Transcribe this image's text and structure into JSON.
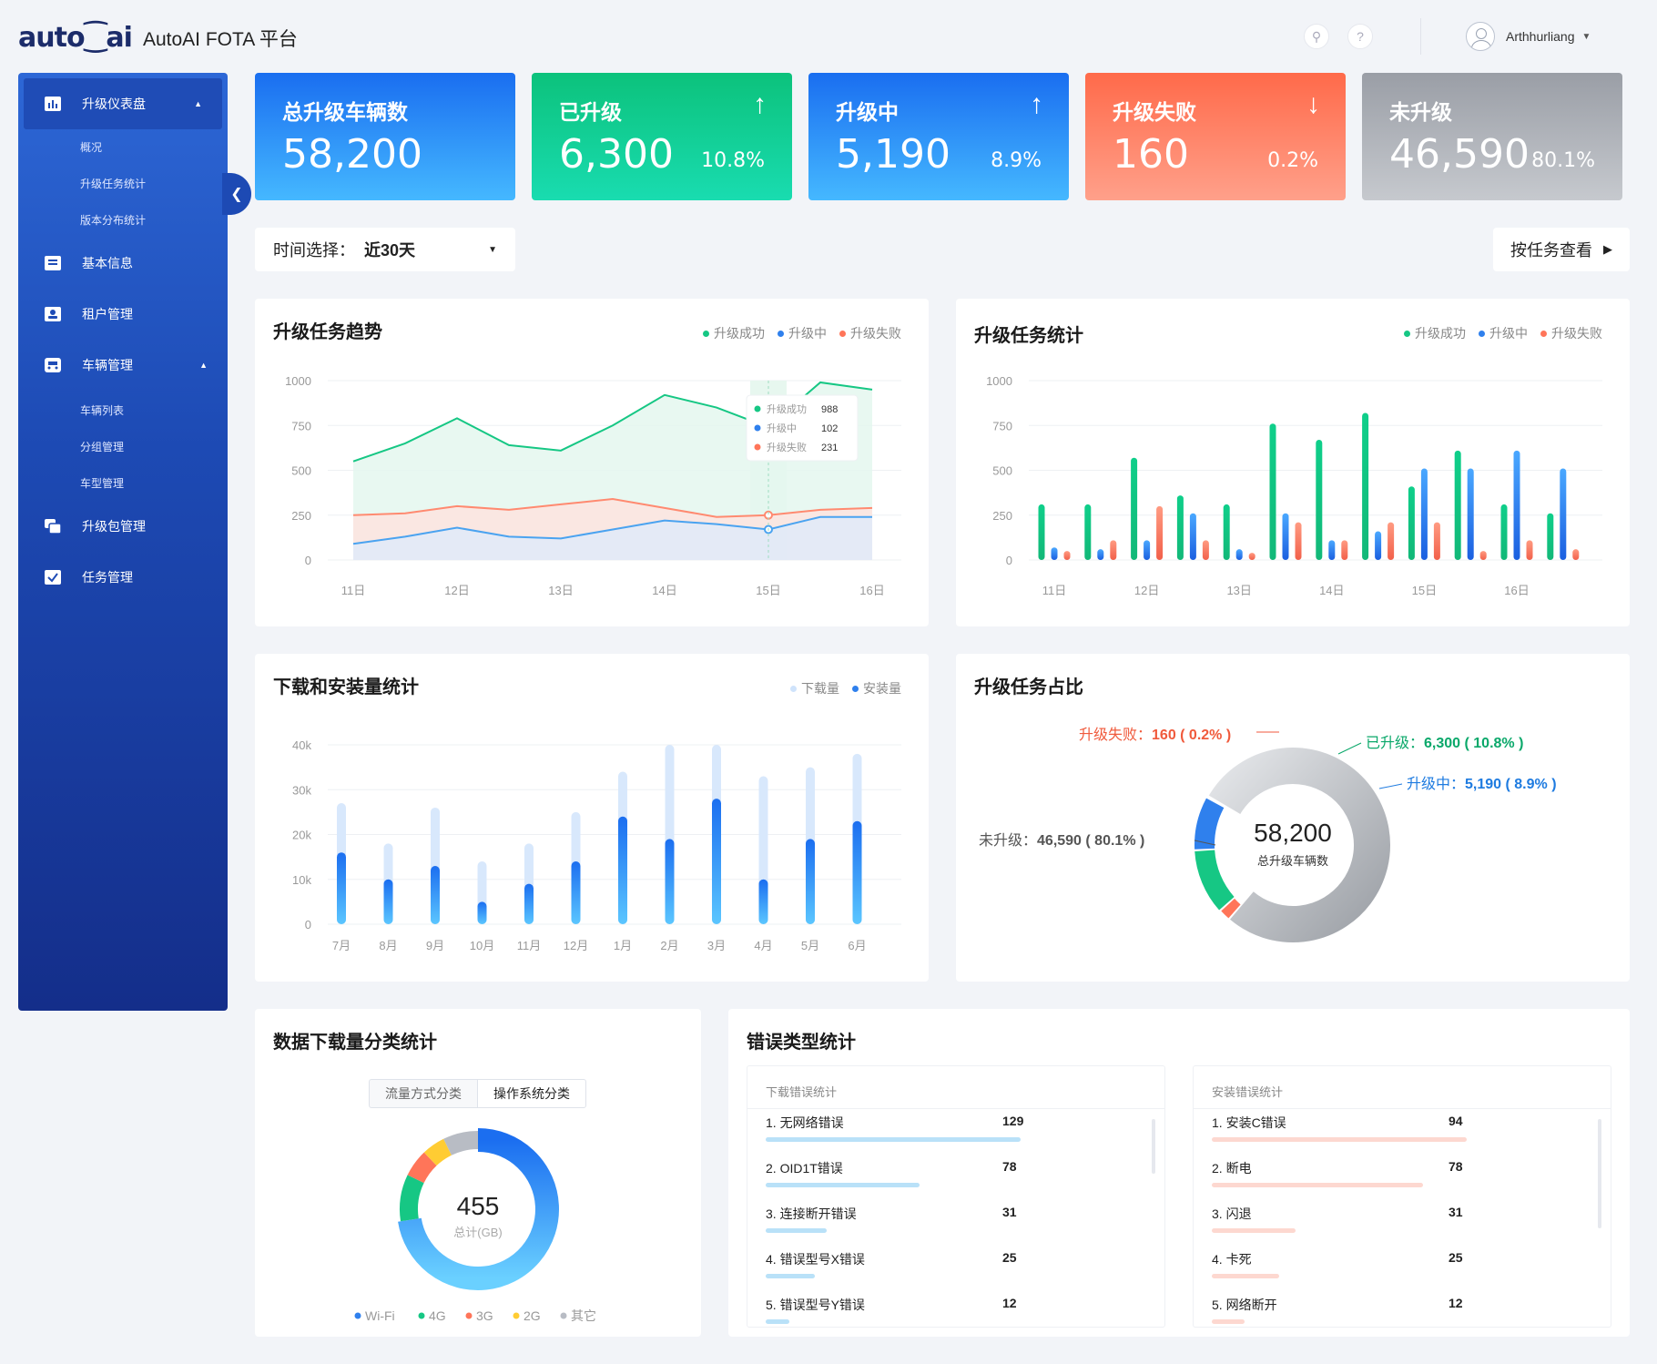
{
  "header": {
    "logo": "auto⁐ai",
    "title": "AutoAI FOTA 平台",
    "user": "Arthhurliang"
  },
  "sidebar": {
    "items": [
      {
        "label": "升级仪表盘",
        "icon": "bar-chart-icon"
      },
      {
        "label": "基本信息",
        "icon": "list-icon"
      },
      {
        "label": "租户管理",
        "icon": "user-card-icon"
      },
      {
        "label": "车辆管理",
        "icon": "car-icon"
      },
      {
        "label": "升级包管理",
        "icon": "package-icon"
      },
      {
        "label": "任务管理",
        "icon": "task-check-icon"
      }
    ],
    "dashboard_sub": [
      "概况",
      "升级任务统计",
      "版本分布统计"
    ],
    "vehicle_sub": [
      "车辆列表",
      "分组管理",
      "车型管理"
    ]
  },
  "stats": [
    {
      "title": "总升级车辆数",
      "value": "58,200",
      "percent": "",
      "arrow": "",
      "color_from": "#1a6ef0",
      "color_to": "#45b8ff"
    },
    {
      "title": "已升级",
      "value": "6,300",
      "percent": "10.8%",
      "arrow": "↑",
      "color_from": "#0cc27c",
      "color_to": "#19dcb0"
    },
    {
      "title": "升级中",
      "value": "5,190",
      "percent": "8.9%",
      "arrow": "↑",
      "color_from": "#1a6ef0",
      "color_to": "#45b8ff"
    },
    {
      "title": "升级失败",
      "value": "160",
      "percent": "0.2%",
      "arrow": "↓",
      "color_from": "#ff6a4a",
      "color_to": "#ffa08a"
    },
    {
      "title": "未升级",
      "value": "46,590",
      "percent": "80.1%",
      "arrow": "",
      "color_from": "#9a9ea6",
      "color_to": "#c6c9ce"
    }
  ],
  "filter": {
    "label": "时间选择：",
    "value": "近30天"
  },
  "task_button": "按任务查看",
  "trend": {
    "title": "升级任务趋势",
    "legend": [
      {
        "name": "升级成功",
        "color": "#16c784"
      },
      {
        "name": "升级中",
        "color": "#2f80ed"
      },
      {
        "name": "升级失败",
        "color": "#ff7559"
      }
    ],
    "tooltip": [
      {
        "name": "升级成功",
        "value": "988"
      },
      {
        "name": "升级中",
        "value": "102"
      },
      {
        "name": "升级失败",
        "value": "231"
      }
    ]
  },
  "taskstats": {
    "title": "升级任务统计",
    "legend": [
      {
        "name": "升级成功",
        "color": "#16c784"
      },
      {
        "name": "升级中",
        "color": "#2f80ed"
      },
      {
        "name": "升级失败",
        "color": "#ff7559"
      }
    ]
  },
  "download": {
    "title": "下载和安装量统计",
    "legend": [
      {
        "name": "下载量",
        "color": "#cfe3fb"
      },
      {
        "name": "安装量",
        "color": "#2f80ed"
      }
    ]
  },
  "ratio": {
    "title": "升级任务占比",
    "center_value": "58,200",
    "center_label": "总升级车辆数",
    "labels": [
      {
        "text": "升级失败：",
        "value": "160 ( 0.2% )",
        "color": "#f05a3c"
      },
      {
        "text": "已升级：",
        "value": "6,300 ( 10.8% )",
        "color": "#0aa86a"
      },
      {
        "text": "升级中：",
        "value": "5,190 ( 8.9% )",
        "color": "#1e7be0"
      },
      {
        "text": "未升级：",
        "value": "46,590 ( 80.1% )",
        "color": "#555555"
      }
    ]
  },
  "datadl": {
    "title": "数据下载量分类统计",
    "tabs": [
      "流量方式分类",
      "操作系统分类"
    ],
    "center_value": "455",
    "center_label": "总计(GB)",
    "legend": [
      {
        "name": "Wi-Fi",
        "color": "#2f80ed"
      },
      {
        "name": "4G",
        "color": "#16c784"
      },
      {
        "name": "3G",
        "color": "#ff7559"
      },
      {
        "name": "2G",
        "color": "#ffcc33"
      },
      {
        "name": "其它",
        "color": "#b8bcc4"
      }
    ]
  },
  "errors": {
    "title": "错误类型统计",
    "download": {
      "header": "下载错误统计",
      "color": "#b9e1f8",
      "rows": [
        {
          "name": "1. 无网络错误",
          "value": "129"
        },
        {
          "name": "2. OID1T错误",
          "value": "78"
        },
        {
          "name": "3. 连接断开错误",
          "value": "31"
        },
        {
          "name": "4. 错误型号X错误",
          "value": "25"
        },
        {
          "name": "5. 错误型号Y错误",
          "value": "12"
        }
      ]
    },
    "install": {
      "header": "安装错误统计",
      "color": "#fdd8d0",
      "rows": [
        {
          "name": "1. 安装C错误",
          "value": "94"
        },
        {
          "name": "2. 断电",
          "value": "78"
        },
        {
          "name": "3. 闪退",
          "value": "31"
        },
        {
          "name": "4. 卡死",
          "value": "25"
        },
        {
          "name": "5. 网络断开",
          "value": "12"
        }
      ]
    }
  },
  "chart_data": [
    {
      "type": "area",
      "title": "升级任务趋势",
      "x": [
        "11日",
        "",
        "12日",
        "",
        "13日",
        "",
        "14日",
        "",
        "15日",
        "",
        "16日"
      ],
      "xticks": [
        "11日",
        "12日",
        "13日",
        "14日",
        "15日",
        "16日"
      ],
      "ylim": [
        0,
        1000
      ],
      "yticks": [
        "0",
        "250",
        "500",
        "750",
        "1000"
      ],
      "series": [
        {
          "name": "升级成功",
          "values": [
            550,
            650,
            790,
            640,
            610,
            750,
            920,
            850,
            740,
            990,
            950
          ]
        },
        {
          "name": "升级失败",
          "values": [
            250,
            260,
            300,
            280,
            310,
            340,
            290,
            240,
            250,
            280,
            290
          ]
        },
        {
          "name": "升级中",
          "values": [
            90,
            130,
            180,
            130,
            120,
            170,
            220,
            200,
            170,
            240,
            240
          ]
        }
      ]
    },
    {
      "type": "bar",
      "title": "升级任务统计",
      "categories": [
        "11日",
        "",
        "12日",
        "",
        "13日",
        "",
        "14日",
        "",
        "15日",
        "",
        "16日",
        ""
      ],
      "xticks": [
        "11日",
        "12日",
        "13日",
        "14日",
        "15日",
        "16日"
      ],
      "ylim": [
        0,
        1000
      ],
      "yticks": [
        "0",
        "250",
        "500",
        "750",
        "1000"
      ],
      "series": [
        {
          "name": "升级成功",
          "values": [
            310,
            310,
            570,
            360,
            310,
            760,
            670,
            820,
            410,
            610,
            310,
            260
          ]
        },
        {
          "name": "升级中",
          "values": [
            70,
            60,
            110,
            260,
            60,
            260,
            110,
            160,
            510,
            510,
            610,
            510
          ]
        },
        {
          "name": "升级失败",
          "values": [
            50,
            110,
            300,
            110,
            40,
            210,
            110,
            210,
            210,
            50,
            110,
            60
          ]
        }
      ]
    },
    {
      "type": "bar",
      "title": "下载和安装量统计",
      "categories": [
        "7月",
        "8月",
        "9月",
        "10月",
        "11月",
        "12月",
        "1月",
        "2月",
        "3月",
        "4月",
        "5月",
        "6月"
      ],
      "ylim": [
        0,
        40000
      ],
      "yticks": [
        "0",
        "10k",
        "20k",
        "30k",
        "40k"
      ],
      "series": [
        {
          "name": "下载量",
          "values": [
            27000,
            18000,
            26000,
            14000,
            18000,
            25000,
            34000,
            40000,
            40000,
            33000,
            35000,
            38000
          ]
        },
        {
          "name": "安装量",
          "values": [
            16000,
            10000,
            13000,
            5000,
            9000,
            14000,
            24000,
            19000,
            28000,
            10000,
            19000,
            23000
          ]
        }
      ]
    },
    {
      "type": "pie",
      "title": "升级任务占比",
      "categories": [
        "未升级",
        "升级失败",
        "已升级",
        "升级中"
      ],
      "values": [
        46590,
        160,
        6300,
        5190
      ]
    },
    {
      "type": "pie",
      "title": "数据下载量分类统计",
      "categories": [
        "Wi-Fi",
        "4G",
        "3G",
        "2G",
        "其它"
      ],
      "values": [
        330,
        44,
        26,
        22,
        33
      ]
    }
  ]
}
